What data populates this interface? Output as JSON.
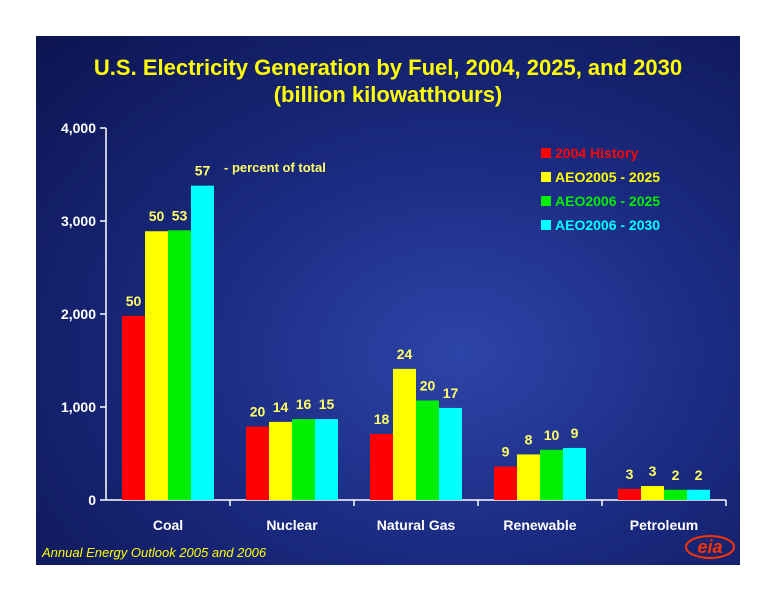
{
  "chart_data": {
    "type": "bar",
    "title": "U.S. Electricity Generation by Fuel, 2004, 2025, and 2030",
    "subtitle": "(billion kilowatthours)",
    "categories": [
      "Coal",
      "Nuclear",
      "Natural Gas",
      "Renewable",
      "Petroleum"
    ],
    "series": [
      {
        "name": "2004 History",
        "color": "#ff0000",
        "values": [
          1980,
          790,
          710,
          360,
          120
        ],
        "labels": [
          "50",
          "20",
          "18",
          "9",
          "3"
        ]
      },
      {
        "name": "AEO2005 - 2025",
        "color": "#ffff00",
        "values": [
          2890,
          840,
          1410,
          490,
          150
        ],
        "labels": [
          "50",
          "14",
          "24",
          "8",
          "3"
        ]
      },
      {
        "name": "AEO2006 - 2025",
        "color": "#00ee00",
        "values": [
          2900,
          870,
          1070,
          540,
          110
        ],
        "labels": [
          "53",
          "16",
          "20",
          "10",
          "2"
        ]
      },
      {
        "name": "AEO2006 - 2030",
        "color": "#00ffff",
        "values": [
          3380,
          870,
          990,
          560,
          110
        ],
        "labels": [
          "57",
          "15",
          "17",
          "9",
          "2"
        ]
      }
    ],
    "ylim": [
      0,
      4000
    ],
    "yticks": [
      "0",
      "1,000",
      "2,000",
      "3,000",
      "4,000"
    ],
    "ytick_values": [
      0,
      1000,
      2000,
      3000,
      4000
    ],
    "annotation": "-  percent of total",
    "legend_position": "top-right",
    "grid": false
  },
  "footnote": "Annual Energy Outlook 2005 and 2006",
  "logo_text": "eia"
}
